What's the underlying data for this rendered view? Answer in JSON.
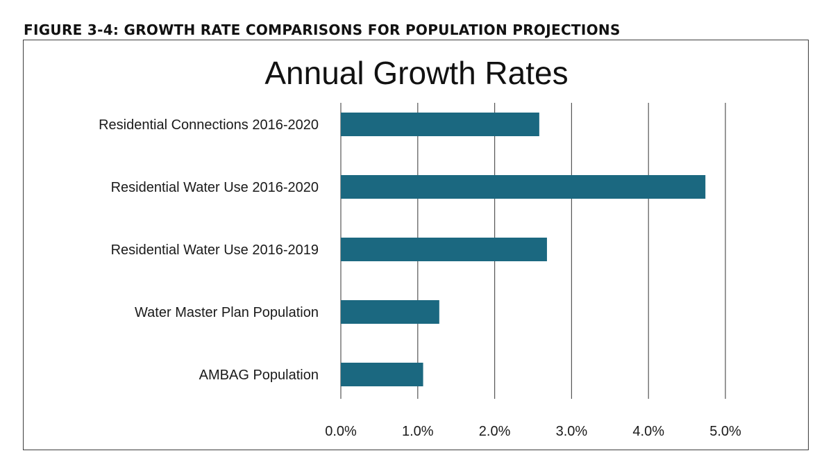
{
  "figure_caption": "FIGURE 3-4: GROWTH RATE COMPARISONS FOR POPULATION PROJECTIONS",
  "colors": {
    "bar": "#1b6880",
    "gridline": "#555555",
    "frame": "#3c3c3c"
  },
  "chart_data": {
    "type": "bar",
    "orientation": "horizontal",
    "title": "Annual Growth Rates",
    "xlabel": "",
    "ylabel": "",
    "categories": [
      "Residential Connections 2016-2020",
      "Residential Water Use 2016-2020",
      "Residential Water Use 2016-2019",
      "Water Master Plan Population",
      "AMBAG Population"
    ],
    "values": [
      2.58,
      4.74,
      2.68,
      1.28,
      1.07
    ],
    "value_unit": "%",
    "xlim": [
      0,
      5
    ],
    "xticks": [
      0,
      1,
      2,
      3,
      4,
      5
    ],
    "xtick_labels": [
      "0.0%",
      "1.0%",
      "2.0%",
      "3.0%",
      "4.0%",
      "5.0%"
    ],
    "grid": "vertical",
    "legend": "none"
  }
}
